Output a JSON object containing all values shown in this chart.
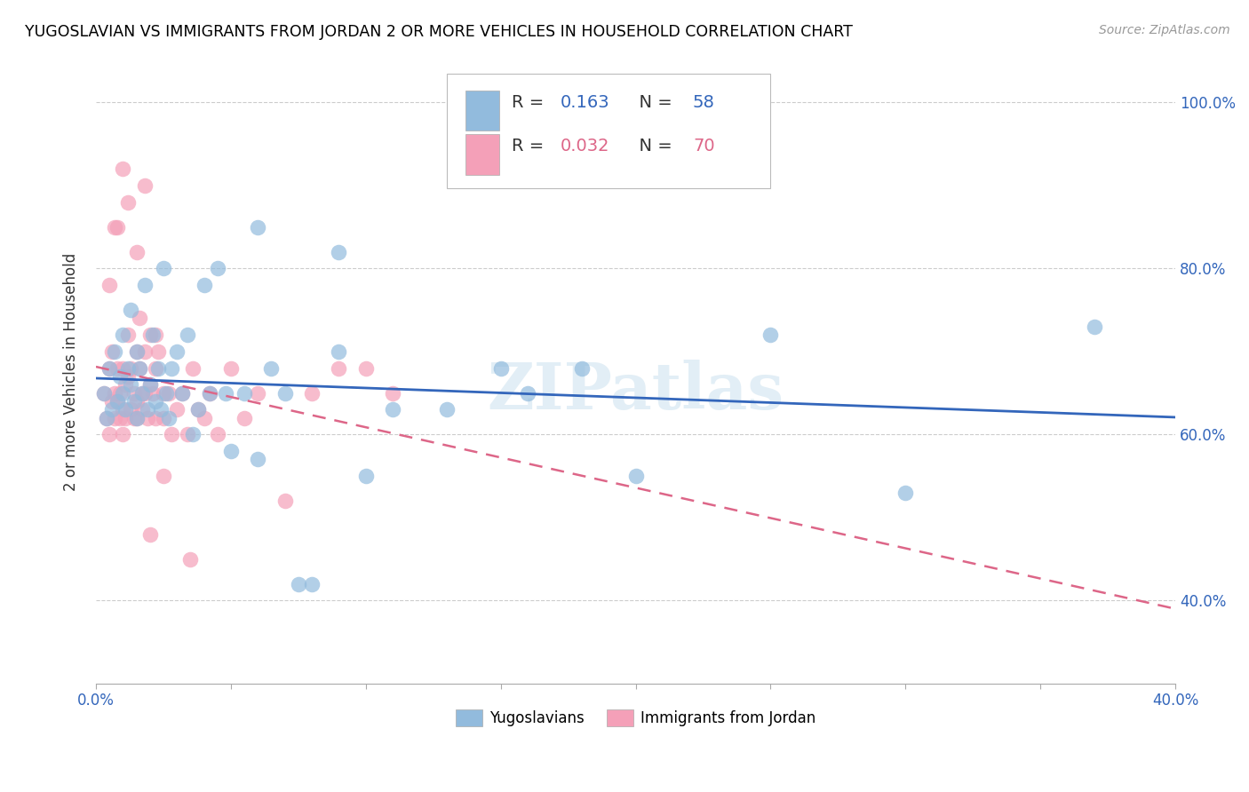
{
  "title": "YUGOSLAVIAN VS IMMIGRANTS FROM JORDAN 2 OR MORE VEHICLES IN HOUSEHOLD CORRELATION CHART",
  "source": "Source: ZipAtlas.com",
  "ylabel": "2 or more Vehicles in Household",
  "xmin": 0.0,
  "xmax": 0.4,
  "ymin": 0.3,
  "ymax": 1.05,
  "yticks": [
    0.4,
    0.6,
    0.8,
    1.0
  ],
  "ytick_labels": [
    "40.0%",
    "60.0%",
    "80.0%",
    "100.0%"
  ],
  "xticks": [
    0.0,
    0.05,
    0.1,
    0.15,
    0.2,
    0.25,
    0.3,
    0.35,
    0.4
  ],
  "xtick_labels": [
    "0.0%",
    "",
    "",
    "",
    "",
    "",
    "",
    "",
    "40.0%"
  ],
  "legend_r1": "R = ",
  "legend_rv1": "0.163",
  "legend_n1_label": "N = ",
  "legend_nv1": "58",
  "legend_r2": "R = ",
  "legend_rv2": "0.032",
  "legend_n2_label": "N = ",
  "legend_nv2": "70",
  "color_blue": "#92BBDD",
  "color_pink": "#F4A0B8",
  "color_blue_line": "#3366BB",
  "color_pink_line": "#DD6688",
  "color_blue_text": "#3366BB",
  "color_pink_text": "#DD6688",
  "color_label_text": "#333333",
  "watermark_text": "ZIPatlas",
  "blue_r": 0.163,
  "pink_r": 0.032,
  "blue_x": [
    0.003,
    0.004,
    0.005,
    0.006,
    0.007,
    0.008,
    0.009,
    0.01,
    0.01,
    0.011,
    0.012,
    0.013,
    0.013,
    0.014,
    0.015,
    0.015,
    0.016,
    0.017,
    0.018,
    0.019,
    0.02,
    0.021,
    0.022,
    0.023,
    0.024,
    0.025,
    0.026,
    0.027,
    0.028,
    0.03,
    0.032,
    0.034,
    0.036,
    0.038,
    0.04,
    0.042,
    0.045,
    0.048,
    0.05,
    0.055,
    0.06,
    0.065,
    0.07,
    0.08,
    0.09,
    0.1,
    0.11,
    0.13,
    0.15,
    0.16,
    0.18,
    0.2,
    0.25,
    0.3,
    0.06,
    0.09,
    0.37,
    0.075
  ],
  "blue_y": [
    0.65,
    0.62,
    0.68,
    0.63,
    0.7,
    0.64,
    0.67,
    0.65,
    0.72,
    0.63,
    0.68,
    0.66,
    0.75,
    0.64,
    0.62,
    0.7,
    0.68,
    0.65,
    0.78,
    0.63,
    0.66,
    0.72,
    0.64,
    0.68,
    0.63,
    0.8,
    0.65,
    0.62,
    0.68,
    0.7,
    0.65,
    0.72,
    0.6,
    0.63,
    0.78,
    0.65,
    0.8,
    0.65,
    0.58,
    0.65,
    0.57,
    0.68,
    0.65,
    0.42,
    0.7,
    0.55,
    0.63,
    0.63,
    0.68,
    0.65,
    0.68,
    0.55,
    0.72,
    0.53,
    0.85,
    0.82,
    0.73,
    0.42
  ],
  "pink_x": [
    0.003,
    0.004,
    0.005,
    0.005,
    0.006,
    0.006,
    0.007,
    0.007,
    0.008,
    0.008,
    0.009,
    0.009,
    0.01,
    0.01,
    0.01,
    0.011,
    0.011,
    0.012,
    0.012,
    0.013,
    0.013,
    0.014,
    0.014,
    0.015,
    0.015,
    0.015,
    0.016,
    0.016,
    0.017,
    0.017,
    0.018,
    0.018,
    0.019,
    0.02,
    0.02,
    0.021,
    0.022,
    0.022,
    0.023,
    0.025,
    0.025,
    0.027,
    0.028,
    0.03,
    0.032,
    0.034,
    0.036,
    0.038,
    0.04,
    0.042,
    0.045,
    0.05,
    0.055,
    0.06,
    0.07,
    0.08,
    0.09,
    0.1,
    0.11,
    0.015,
    0.02,
    0.025,
    0.008,
    0.01,
    0.012,
    0.018,
    0.022,
    0.035,
    0.005,
    0.007
  ],
  "pink_y": [
    0.65,
    0.62,
    0.6,
    0.68,
    0.64,
    0.7,
    0.62,
    0.65,
    0.64,
    0.68,
    0.65,
    0.62,
    0.6,
    0.63,
    0.68,
    0.62,
    0.66,
    0.67,
    0.72,
    0.63,
    0.68,
    0.65,
    0.62,
    0.64,
    0.7,
    0.62,
    0.68,
    0.74,
    0.63,
    0.65,
    0.65,
    0.7,
    0.62,
    0.66,
    0.72,
    0.65,
    0.68,
    0.62,
    0.7,
    0.65,
    0.62,
    0.65,
    0.6,
    0.63,
    0.65,
    0.6,
    0.68,
    0.63,
    0.62,
    0.65,
    0.6,
    0.68,
    0.62,
    0.65,
    0.52,
    0.65,
    0.68,
    0.68,
    0.65,
    0.82,
    0.48,
    0.55,
    0.85,
    0.92,
    0.88,
    0.9,
    0.72,
    0.45,
    0.78,
    0.85
  ]
}
